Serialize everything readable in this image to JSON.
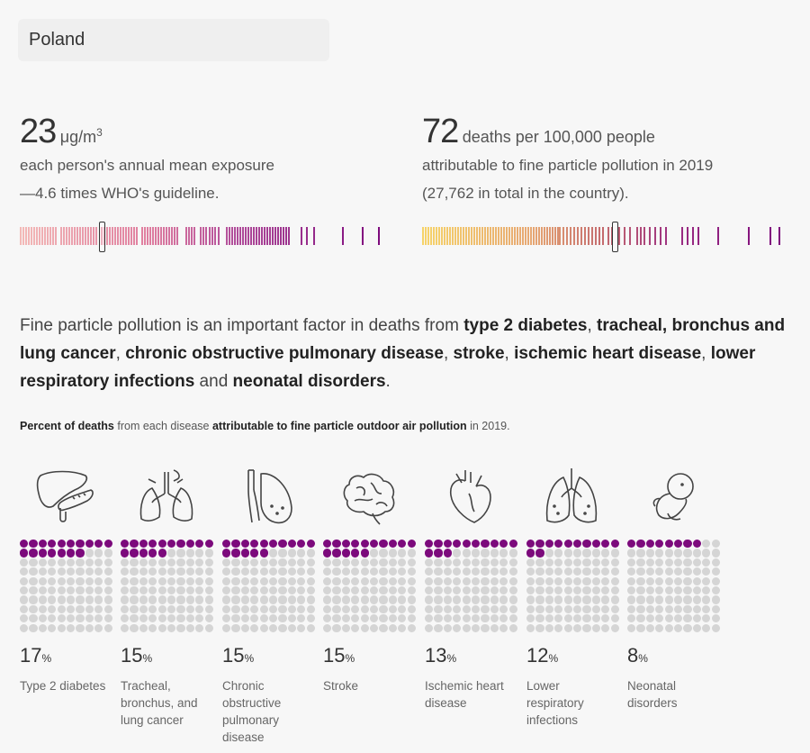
{
  "country": {
    "selected": "Poland"
  },
  "exposure": {
    "value": "23",
    "unit": "μg/m",
    "unit_sup": "3",
    "line1": "each person's annual mean exposure",
    "line2": "—4.6 times WHO's guideline."
  },
  "deaths": {
    "value": "72",
    "unit": "deaths per 100,000 people",
    "line1": "attributable to fine particle pollution in 2019",
    "line2": "(27,762 in total in the country)."
  },
  "sentence": {
    "intro": "Fine particle pollution is an important factor in deaths from ",
    "d1": "type 2 diabetes",
    "sep1": ", ",
    "d2": "tracheal, bronchus and lung cancer",
    "sep2": ", ",
    "d3": "chronic obstructive pulmonary disease",
    "sep3": ", ",
    "d4": "stroke",
    "sep4": ", ",
    "d5": "ischemic heart disease",
    "sep5": ", ",
    "d6": "lower respiratory infections",
    "sep6": " and ",
    "d7": "neonatal disorders",
    "end": "."
  },
  "subhead": {
    "b1": "Percent of deaths",
    "t1": " from each disease ",
    "b2": "attributable to fine particle outdoor air pollution",
    "t2": " in 2019."
  },
  "diseases": [
    {
      "icon": "liver-pancreas-icon",
      "percent": 17,
      "pct_label": "17",
      "pct_unit": "%",
      "label": "Type 2 diabetes"
    },
    {
      "icon": "trachea-lungs-icon",
      "percent": 15,
      "pct_label": "15",
      "pct_unit": "%",
      "label": "Tracheal, bronchus, and lung cancer"
    },
    {
      "icon": "lung-airway-icon",
      "percent": 15,
      "pct_label": "15",
      "pct_unit": "%",
      "label": "Chronic obstructive pulmonary disease"
    },
    {
      "icon": "brain-icon",
      "percent": 15,
      "pct_label": "15",
      "pct_unit": "%",
      "label": "Stroke"
    },
    {
      "icon": "heart-icon",
      "percent": 13,
      "pct_label": "13",
      "pct_unit": "%",
      "label": "Ischemic heart disease"
    },
    {
      "icon": "lungs-icon",
      "percent": 12,
      "pct_label": "12",
      "pct_unit": "%",
      "label": "Lower respiratory infections"
    },
    {
      "icon": "fetus-icon",
      "percent": 8,
      "pct_label": "8",
      "pct_unit": "%",
      "label": "Neonatal disorders"
    }
  ],
  "colors": {
    "dot_on": "#7c0a7c",
    "dot_off": "#d5d5d5"
  }
}
